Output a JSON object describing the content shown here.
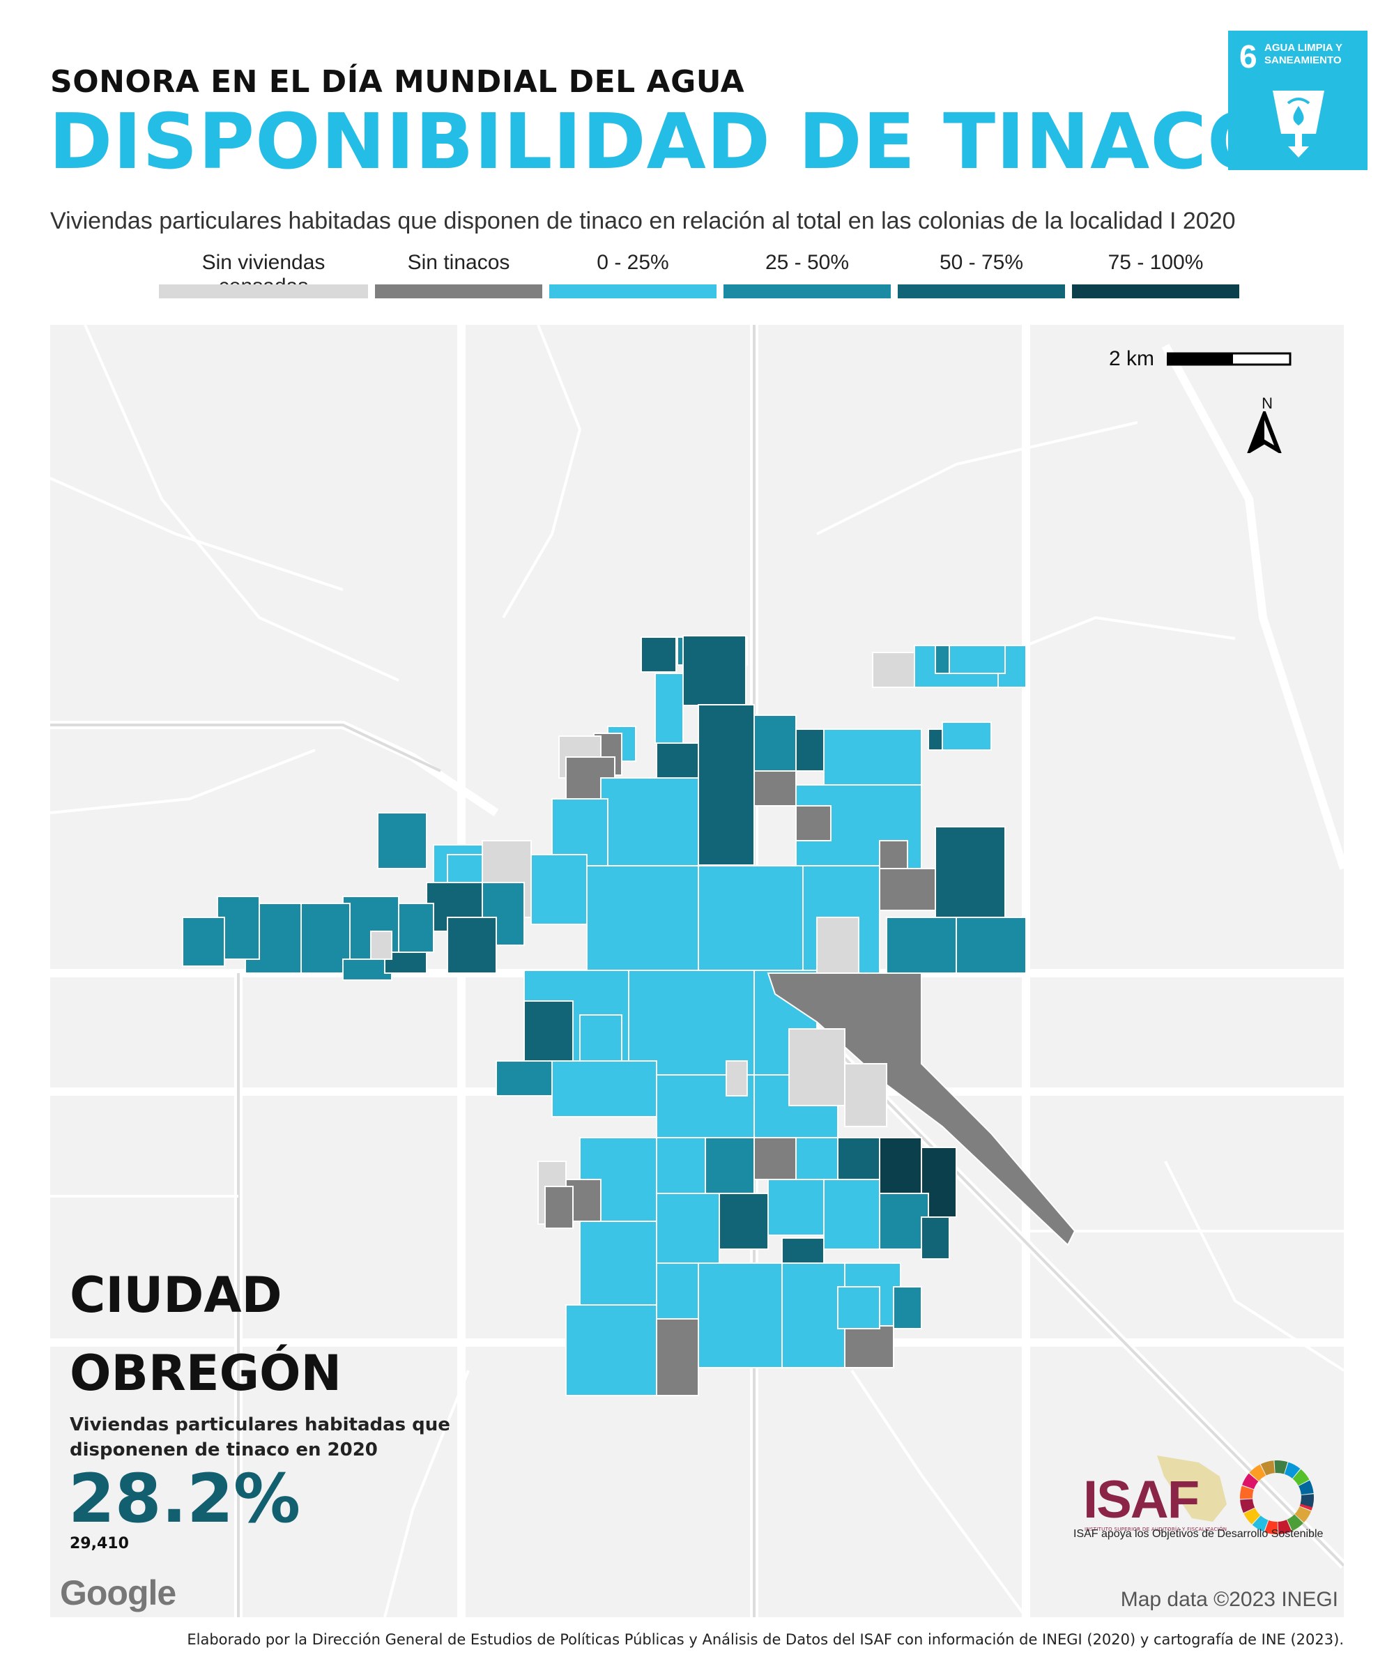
{
  "header": {
    "kicker": "SONORA EN EL DÍA MUNDIAL DEL AGUA",
    "title": "DISPONIBILIDAD DE TINACOS",
    "subtitle": "Viviendas particulares habitadas que disponen de tinaco en relación al total en las colonias de la localidad I 2020"
  },
  "sdg_badge": {
    "number": "6",
    "label": "AGUA LIMPIA Y SANEAMIENTO",
    "color": "#26bde2",
    "icon": "water-glass-icon"
  },
  "legend": [
    {
      "label": "Sin viviendas censadas",
      "color": "#d9d9d9"
    },
    {
      "label": "Sin tinacos",
      "color": "#7f7f7f"
    },
    {
      "label": "0 - 25%",
      "color": "#3cc4e6"
    },
    {
      "label": "25 - 50%",
      "color": "#1a8ba3"
    },
    {
      "label": "50 - 75%",
      "color": "#126576"
    },
    {
      "label": "75 - 100%",
      "color": "#0b3f4b"
    }
  ],
  "map": {
    "scale_label": "2 km",
    "north_label": "N",
    "attribution": "Map data ©2023 INEGI",
    "provider": "Google"
  },
  "city": {
    "line1": "CIUDAD",
    "line2": "OBREGÓN",
    "stat_label": "Viviendas particulares habitadas que disponenen de tinaco en 2020",
    "stat_value": "28.2%",
    "stat_count": "29,410"
  },
  "logos": {
    "isaf": "ISAF",
    "isaf_sub": "INSTITUTO SUPERIOR DE AUDITORÍA Y FISCALIZACIÓN",
    "caption": "ISAF apoya los Objetivos de Desarrollo Sostenible"
  },
  "footer": "Elaborado por la Dirección General de Estudios de Políticas Públicas y Análisis de Datos del ISAF con información de INEGI (2020) y cartografía de INE (2023)."
}
